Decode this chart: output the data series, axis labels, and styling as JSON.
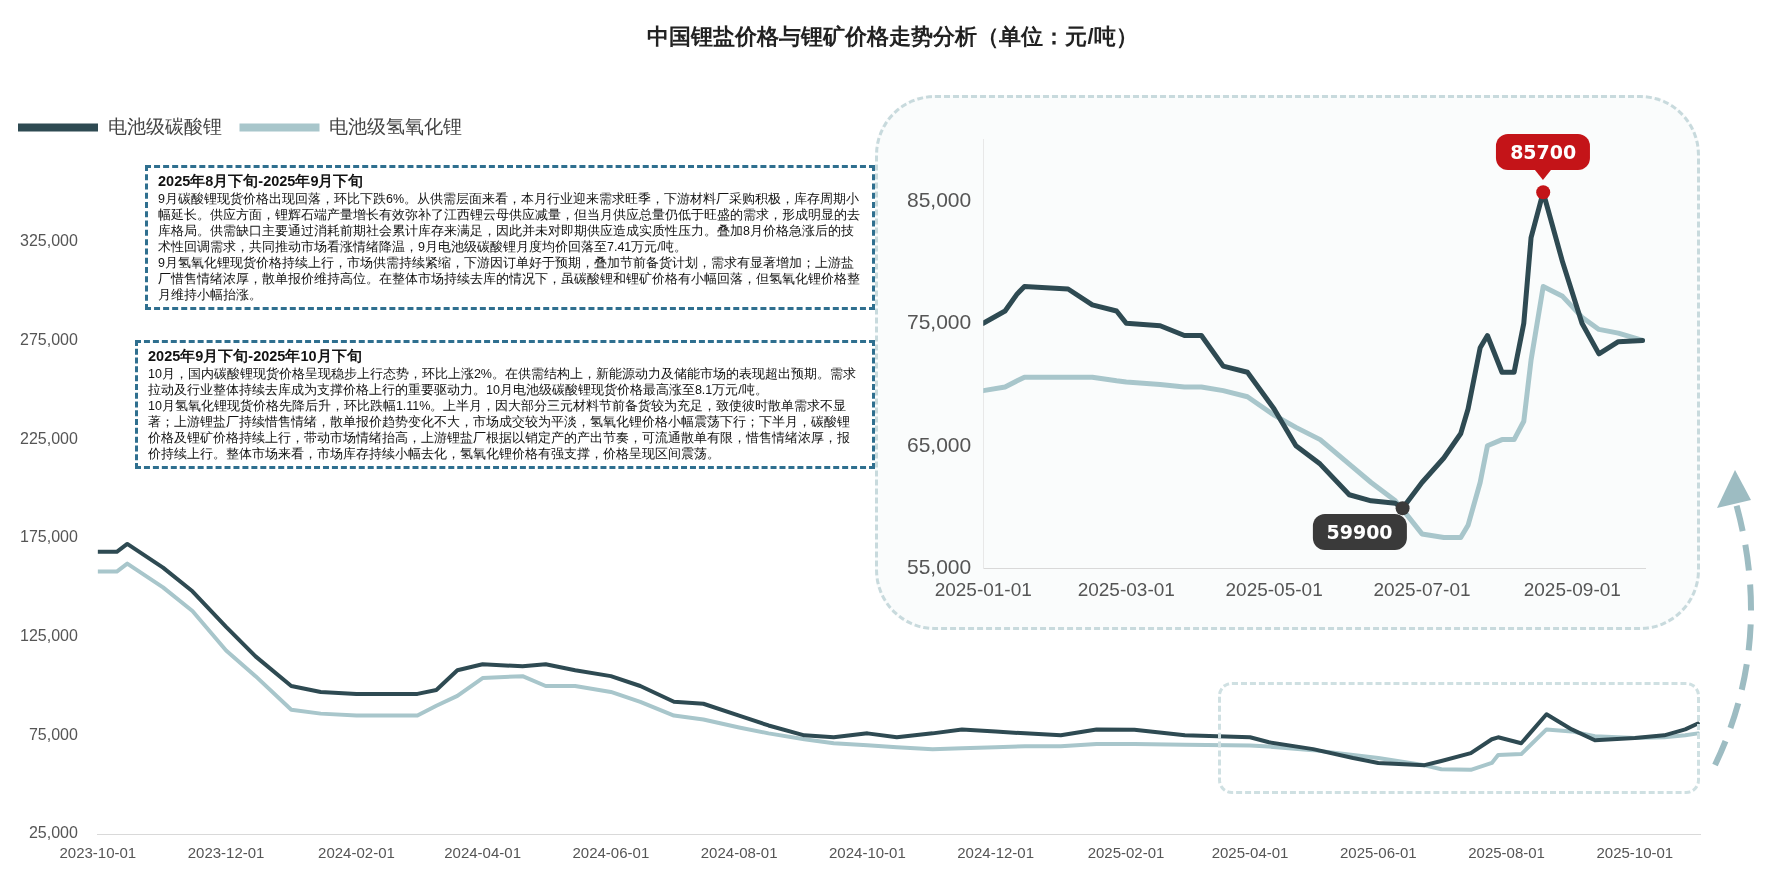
{
  "chart_data": [
    {
      "type": "line",
      "title": "中国锂盐价格与锂矿价格走势分析（单位：元/吨）",
      "x": [
        "2023-10-01",
        "2023-10-10",
        "2023-10-15",
        "2023-11-01",
        "2023-11-15",
        "2023-12-01",
        "2023-12-15",
        "2024-01-01",
        "2024-01-15",
        "2024-02-01",
        "2024-03-01",
        "2024-03-10",
        "2024-03-20",
        "2024-04-01",
        "2024-04-20",
        "2024-05-01",
        "2024-05-15",
        "2024-06-01",
        "2024-06-15",
        "2024-07-01",
        "2024-07-15",
        "2024-08-01",
        "2024-08-15",
        "2024-09-01",
        "2024-09-15",
        "2024-10-01",
        "2024-10-15",
        "2024-11-01",
        "2024-11-15",
        "2024-12-01",
        "2024-12-15",
        "2025-01-01",
        "2025-01-18",
        "2025-02-05",
        "2025-03-01",
        "2025-04-01",
        "2025-04-10",
        "2025-05-01",
        "2025-05-20",
        "2025-06-01",
        "2025-06-23",
        "2025-07-01",
        "2025-07-15",
        "2025-07-25",
        "2025-07-28",
        "2025-08-08",
        "2025-08-20",
        "2025-09-01",
        "2025-09-12",
        "2025-10-01",
        "2025-10-15",
        "2025-10-25",
        "2025-10-31"
      ],
      "series": [
        {
          "name": "电池级碳酸锂",
          "color": "#2e4a52",
          "values": [
            168000,
            168000,
            172000,
            160000,
            148000,
            130000,
            115000,
            100000,
            97000,
            96000,
            96000,
            98000,
            108000,
            111000,
            110000,
            111000,
            108000,
            105000,
            100000,
            92000,
            91000,
            85000,
            80000,
            75000,
            74000,
            76000,
            74000,
            76000,
            78000,
            77000,
            76000,
            75000,
            78000,
            77800,
            75000,
            74000,
            71500,
            68000,
            63500,
            61000,
            59900,
            62000,
            66000,
            73000,
            74000,
            71000,
            85700,
            78000,
            72500,
            73600,
            75000,
            78000,
            81000
          ]
        },
        {
          "name": "电池级氢氧化锂",
          "color": "#a8c6cb",
          "values": [
            158000,
            158000,
            162000,
            150000,
            138000,
            118000,
            105000,
            88000,
            86000,
            85000,
            85000,
            90000,
            95000,
            104000,
            105000,
            100000,
            100000,
            97000,
            92000,
            85000,
            83000,
            79000,
            76000,
            73000,
            71000,
            70000,
            69000,
            68000,
            68500,
            69000,
            69500,
            69500,
            70600,
            70600,
            70200,
            69800,
            69300,
            67500,
            65000,
            63500,
            59800,
            57800,
            57500,
            61000,
            65000,
            65500,
            78000,
            77000,
            74500,
            73600,
            74000,
            75000,
            76000
          ]
        }
      ],
      "xlim": [
        "2023-10-01",
        "2025-11-01"
      ],
      "xticks": [
        "2023-10-01",
        "2023-12-01",
        "2024-02-01",
        "2024-04-01",
        "2024-06-01",
        "2024-08-01",
        "2024-10-01",
        "2024-12-01",
        "2025-02-01",
        "2025-04-01",
        "2025-06-01",
        "2025-08-01",
        "2025-10-01"
      ],
      "ylim": [
        25000,
        325000
      ],
      "yticks": [
        {
          "value": 25000,
          "label": "25,000"
        },
        {
          "value": 75000,
          "label": "75,000"
        },
        {
          "value": 125000,
          "label": "125,000"
        },
        {
          "value": 175000,
          "label": "175,000"
        },
        {
          "value": 225000,
          "label": "225,000"
        },
        {
          "value": 275000,
          "label": "275,000"
        },
        {
          "value": 325000,
          "label": "325,000"
        }
      ],
      "legend": "top left",
      "grid": false,
      "marker": "none",
      "line_style": "solid",
      "annotations": [
        "2025年8月下旬-2025年9月下旬",
        "9月碳酸锂现货价格出现回落，环比下跌6%。从供需层面来看，本月行业迎来需求旺季，下游材料厂采购积极，库存周期小幅延长。供应方面，锂辉石端产量增长有效弥补了江西锂云母供应减量，但当月供应总量仍低于旺盛的需求，形成明显的去库格局。供需缺口主要通过消耗前期社会累计库存来满足，因此并未对即期供应造成实质性压力。叠加8月价格急涨后的技术性回调需求，共同推动市场看涨情绪降温，9月电池级碳酸锂月度均价回落至7.41万元/吨。",
        "9月氢氧化锂现货价格持续上行，市场供需持续紧缩，下游因订单好于预期，叠加节前备货计划，需求有显著增加；上游盐厂惜售情绪浓厚，散单报价维持高位。在整体市场持续去库的情况下，虽碳酸锂和锂矿价格有小幅回落，但氢氧化锂价格整月维持小幅抬涨。",
        "2025年9月下旬-2025年10月下旬",
        "10月，国内碳酸锂现货价格呈现稳步上行态势，环比上涨2%。在供需结构上，新能源动力及储能市场的表现超出预期。需求拉动及行业整体持续去库成为支撑价格上行的重要驱动力。10月电池级碳酸锂现货价格最高涨至8.1万元/吨。",
        "10月氢氧化锂现货价格先降后升，环比跌幅1.11%。上半月，因大部分三元材料节前备货较为充足，致使彼时散单需求不显著；上游锂盐厂持续惜售情绪，散单报价趋势变化不大，市场成交较为平淡，氢氧化锂价格小幅震荡下行；下半月，碳酸锂价格及锂矿价格持续上行，带动市场情绪抬高，上游锂盐厂根据以销定产的产出节奏，可流通散单有限，惜售情绪浓厚，报价持续上行。整体市场来看，市场库存持续小幅去化，氢氧化锂价格有强支撑，价格呈现区间震荡。"
      ]
    },
    {
      "type": "line",
      "x": [
        "2025-01-01",
        "2025-01-10",
        "2025-01-15",
        "2025-01-18",
        "2025-02-05",
        "2025-02-15",
        "2025-02-25",
        "2025-03-01",
        "2025-03-15",
        "2025-03-25",
        "2025-04-01",
        "2025-04-10",
        "2025-04-20",
        "2025-05-01",
        "2025-05-10",
        "2025-05-20",
        "2025-06-01",
        "2025-06-10",
        "2025-06-20",
        "2025-06-23",
        "2025-07-01",
        "2025-07-10",
        "2025-07-17",
        "2025-07-20",
        "2025-07-25",
        "2025-07-28",
        "2025-08-03",
        "2025-08-08",
        "2025-08-12",
        "2025-08-15",
        "2025-08-20",
        "2025-08-28",
        "2025-09-05",
        "2025-09-12",
        "2025-09-20",
        "2025-09-30"
      ],
      "series": [
        {
          "color": "#2e4a52",
          "values": [
            75000,
            76000,
            77400,
            78000,
            77800,
            76500,
            76000,
            75000,
            74800,
            74000,
            74000,
            71500,
            71000,
            68000,
            65000,
            63500,
            61000,
            60500,
            60300,
            59900,
            62000,
            64000,
            66000,
            68000,
            73000,
            74000,
            71000,
            71000,
            75000,
            82000,
            85700,
            80000,
            75000,
            72500,
            73500,
            73600
          ]
        },
        {
          "color": "#a8c6cb",
          "values": [
            69500,
            69800,
            70300,
            70600,
            70600,
            70600,
            70300,
            70200,
            70000,
            69800,
            69800,
            69500,
            69000,
            67500,
            66500,
            65500,
            63500,
            62000,
            60500,
            59800,
            57800,
            57500,
            57500,
            58500,
            62000,
            65000,
            65500,
            65500,
            67000,
            72000,
            78000,
            77200,
            75500,
            74500,
            74200,
            73600
          ]
        }
      ],
      "xlim": [
        "2025-01-01",
        "2025-10-01"
      ],
      "xticks": [
        "2025-01-01",
        "2025-03-01",
        "2025-05-01",
        "2025-07-01",
        "2025-09-01"
      ],
      "ylim": [
        55000,
        90000
      ],
      "yticks": [
        {
          "value": 55000,
          "label": "55,000"
        },
        {
          "value": 65000,
          "label": "65,000"
        },
        {
          "value": 75000,
          "label": "75,000"
        },
        {
          "value": 85000,
          "label": "85,000"
        }
      ],
      "grid": false,
      "marker": "none",
      "line_style": "solid",
      "annotations": [
        {
          "text": "85700",
          "x": "2025-08-20",
          "y": 85700
        },
        {
          "text": "59900",
          "x": "2025-06-23",
          "y": 59900
        }
      ]
    }
  ]
}
